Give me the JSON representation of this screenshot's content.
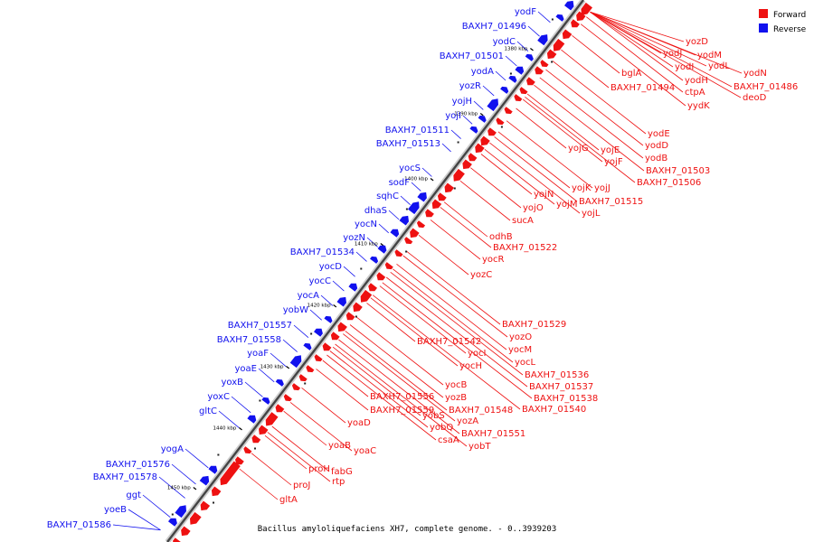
{
  "caption": "Bacillus amyloliquefaciens XH7, complete genome. - 0..3939203",
  "legend": {
    "forward_label": "Forward",
    "reverse_label": "Reverse",
    "forward_color": "#ee1111",
    "reverse_color": "#1111ee"
  },
  "ticks": [
    "1380 kbp",
    "1390 kbp",
    "1400 kbp",
    "1410 kbp",
    "1420 kbp",
    "1430 kbp",
    "1440 kbp",
    "1450 kbp"
  ],
  "reverse_genes": [
    "yodF",
    "BAXH7_01496",
    "yodC",
    "BAXH7_01501",
    "yodA",
    "yozR",
    "yojH",
    "yojI",
    "BAXH7_01511",
    "BAXH7_01513",
    "yocS",
    "sodF",
    "sqhC",
    "dhaS",
    "yocN",
    "yozN",
    "BAXH7_01534",
    "yocD",
    "yocC",
    "yocA",
    "yobW",
    "BAXH7_01557",
    "BAXH7_01558",
    "yoaF",
    "yoaE",
    "yoxB",
    "yoxC",
    "gltC",
    "yogA",
    "BAXH7_01576",
    "BAXH7_01578",
    "ggt",
    "yoeB",
    "BAXH7_01586"
  ],
  "forward_genes": [
    "yozD",
    "yodM",
    "yodJ",
    "yodL",
    "yodN",
    "yodI",
    "yodH",
    "BAXH7_01486",
    "bglA",
    "deoD",
    "BAXH7_01494",
    "ctpA",
    "yydK",
    "yodE",
    "yodD",
    "yojG",
    "yojE",
    "yodB",
    "yojF",
    "BAXH7_01503",
    "BAXH7_01506",
    "yojK",
    "yojJ",
    "yojN",
    "BAXH7_01515",
    "yojM",
    "yojO",
    "yojL",
    "sucA",
    "odhB",
    "BAXH7_01522",
    "yocR",
    "yozC",
    "BAXH7_01529",
    "yozO",
    "BAXH7_01542",
    "yocM",
    "yocI",
    "yocL",
    "yocH",
    "BAXH7_01536",
    "BAXH7_01537",
    "yocB",
    "BAXH7_01538",
    "yozB",
    "BAXH7_01556",
    "BAXH7_01540",
    "BAXH7_01559",
    "BAXH7_01548",
    "yobS",
    "yozA",
    "yoaD",
    "yobQ",
    "BAXH7_01551",
    "csaA",
    "yobT",
    "yoaB",
    "yoaC",
    "fabG",
    "proH",
    "rtp",
    "proJ",
    "gltA"
  ]
}
